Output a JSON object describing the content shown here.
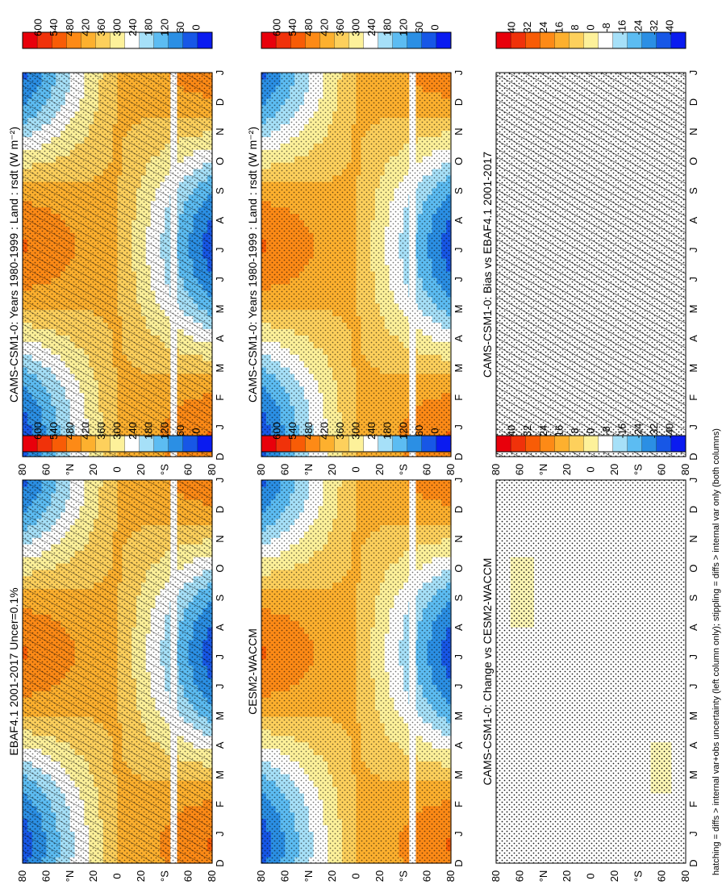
{
  "chart_data": [
    {
      "type": "heatmap",
      "id": "p1",
      "title": "CAMS-CSM1-0: Years 1980-1999 : Land : rsdt (W m⁻²)",
      "x_categories": [
        "D",
        "J",
        "F",
        "M",
        "A",
        "M",
        "J",
        "J",
        "A",
        "S",
        "O",
        "N",
        "D",
        "J"
      ],
      "lat_labels": [
        "80",
        "60",
        "°N",
        "20",
        "0",
        "20",
        "°S",
        "60",
        "80"
      ],
      "colorbar_labels": [
        "600",
        "540",
        "480",
        "420",
        "360",
        "300",
        "240",
        "180",
        "120",
        "60",
        "0"
      ],
      "value_range": [
        0,
        600
      ],
      "overlay": [
        "hatching",
        "stippling"
      ]
    },
    {
      "type": "heatmap",
      "id": "p2",
      "title": "CAMS-CSM1-0: Years 1980-1999 : Land : rsdt (W m⁻²)",
      "x_categories": [
        "D",
        "J",
        "F",
        "M",
        "A",
        "M",
        "J",
        "J",
        "A",
        "S",
        "O",
        "N",
        "D",
        "J"
      ],
      "lat_labels": [
        "80",
        "60",
        "°N",
        "20",
        "0",
        "20",
        "°S",
        "60",
        "80"
      ],
      "colorbar_labels": [
        "600",
        "540",
        "480",
        "420",
        "360",
        "300",
        "240",
        "180",
        "120",
        "60",
        "0"
      ],
      "value_range": [
        0,
        600
      ],
      "overlay": [
        "stippling"
      ]
    },
    {
      "type": "heatmap",
      "id": "p3",
      "title": "EBAF4.1 2001-2017 Uncer=0.1%",
      "x_categories": [
        "D",
        "J",
        "F",
        "M",
        "A",
        "M",
        "J",
        "J",
        "A",
        "S",
        "O",
        "N",
        "D",
        "J"
      ],
      "lat_labels": [
        "80",
        "60",
        "°N",
        "20",
        "0",
        "20",
        "°S",
        "60",
        "80"
      ],
      "colorbar_labels": [
        "600",
        "540",
        "480",
        "420",
        "360",
        "300",
        "240",
        "180",
        "120",
        "60",
        "0"
      ],
      "value_range": [
        0,
        600
      ],
      "overlay": [
        "hatching",
        "stippling"
      ]
    },
    {
      "type": "heatmap",
      "id": "p4",
      "title": "CESM2-WACCM",
      "x_categories": [
        "D",
        "J",
        "F",
        "M",
        "A",
        "M",
        "J",
        "J",
        "A",
        "S",
        "O",
        "N",
        "D",
        "J"
      ],
      "lat_labels": [
        "80",
        "60",
        "°N",
        "20",
        "0",
        "20",
        "°S",
        "60",
        "80"
      ],
      "colorbar_labels": [
        "600",
        "540",
        "480",
        "420",
        "360",
        "300",
        "240",
        "180",
        "120",
        "60",
        "0"
      ],
      "value_range": [
        0,
        600
      ],
      "overlay": [
        "stippling"
      ]
    },
    {
      "type": "heatmap",
      "id": "p5",
      "title": "CAMS-CSM1-0: Bias vs EBAF4.1 2001-2017",
      "x_categories": [
        "D",
        "J",
        "F",
        "M",
        "A",
        "M",
        "J",
        "J",
        "A",
        "S",
        "O",
        "N",
        "D",
        "J"
      ],
      "lat_labels": [
        "80",
        "60",
        "°N",
        "20",
        "0",
        "20",
        "°S",
        "60",
        "80"
      ],
      "colorbar_labels": [
        "40",
        "32",
        "24",
        "16",
        "8",
        "0",
        "-8",
        "-16",
        "-24",
        "-32",
        "-40"
      ],
      "value_range": [
        -40,
        40
      ],
      "overlay": [
        "hatching",
        "stippling"
      ]
    },
    {
      "type": "heatmap",
      "id": "p6",
      "title": "CAMS-CSM1-0: Change vs CESM2-WACCM",
      "x_categories": [
        "D",
        "J",
        "F",
        "M",
        "A",
        "M",
        "J",
        "J",
        "A",
        "S",
        "O",
        "N",
        "D",
        "J"
      ],
      "lat_labels": [
        "80",
        "60",
        "°N",
        "20",
        "0",
        "20",
        "°S",
        "60",
        "80"
      ],
      "colorbar_labels": [
        "40",
        "32",
        "24",
        "16",
        "8",
        "0",
        "-8",
        "-16",
        "-24",
        "-32",
        "-40"
      ],
      "value_range": [
        -40,
        40
      ],
      "overlay": [
        "stippling"
      ]
    }
  ],
  "footnote": "hatching = diffs > internal var+obs uncertainty (left column only); stippling = diffs > internal var only (both columns)"
}
